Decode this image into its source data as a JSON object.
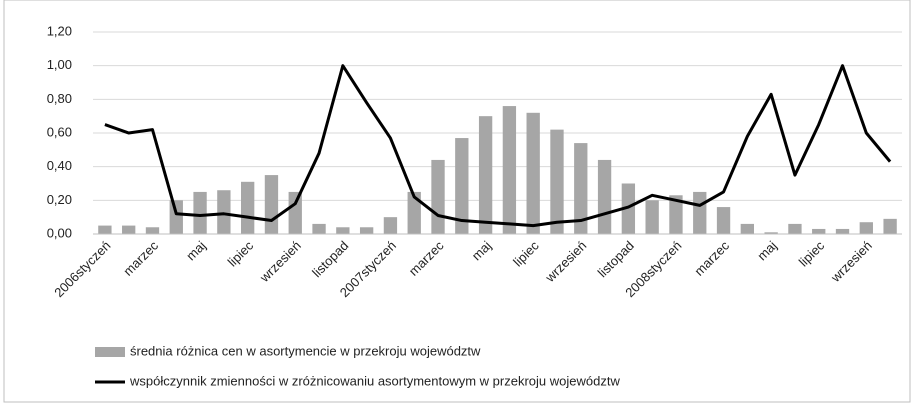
{
  "chart_data": {
    "type": "bar-line",
    "categories": [
      "2006styczeń",
      null,
      "marzec",
      null,
      "maj",
      null,
      "lipiec",
      null,
      "wrzesień",
      null,
      "listopad",
      null,
      "2007styczeń",
      null,
      "marzec",
      null,
      "maj",
      null,
      "lipiec",
      null,
      "wrzesień",
      null,
      "listopad",
      null,
      "2008styczeń",
      null,
      "marzec",
      null,
      "maj",
      null,
      "lipiec",
      null,
      "wrzesień",
      null
    ],
    "series": [
      {
        "name": "średnia różnica cen w asortymencie w przekroju województw",
        "type": "bar",
        "color": "#a6a6a6",
        "values": [
          0.05,
          0.05,
          0.04,
          0.2,
          0.25,
          0.26,
          0.31,
          0.35,
          0.25,
          0.06,
          0.04,
          0.04,
          0.1,
          0.25,
          0.44,
          0.57,
          0.7,
          0.76,
          0.72,
          0.62,
          0.54,
          0.44,
          0.3,
          0.2,
          0.23,
          0.25,
          0.16,
          0.06,
          0.01,
          0.06,
          0.03,
          0.03,
          0.07,
          0.09
        ]
      },
      {
        "name": "współczynnik zmienności w zróżnicowaniu asortymentowym w przekroju województw",
        "type": "line",
        "color": "#000000",
        "values": [
          0.65,
          0.6,
          0.62,
          0.12,
          0.11,
          0.12,
          0.1,
          0.08,
          0.18,
          0.48,
          1.0,
          0.78,
          0.57,
          0.22,
          0.11,
          0.08,
          0.07,
          0.06,
          0.05,
          0.07,
          0.08,
          0.12,
          0.16,
          0.23,
          0.2,
          0.17,
          0.25,
          0.58,
          0.83,
          0.35,
          0.65,
          1.0,
          0.6,
          0.43
        ]
      }
    ],
    "ylim": [
      0,
      1.2
    ],
    "yticks": [
      {
        "value": 0,
        "label": "0,00"
      },
      {
        "value": 0.2,
        "label": "0,20"
      },
      {
        "value": 0.4,
        "label": "0,40"
      },
      {
        "value": 0.6,
        "label": "0,60"
      },
      {
        "value": 0.8,
        "label": "0,80"
      },
      {
        "value": 1.0,
        "label": "1,00"
      },
      {
        "value": 1.2,
        "label": "1,20"
      }
    ],
    "grid": true
  }
}
